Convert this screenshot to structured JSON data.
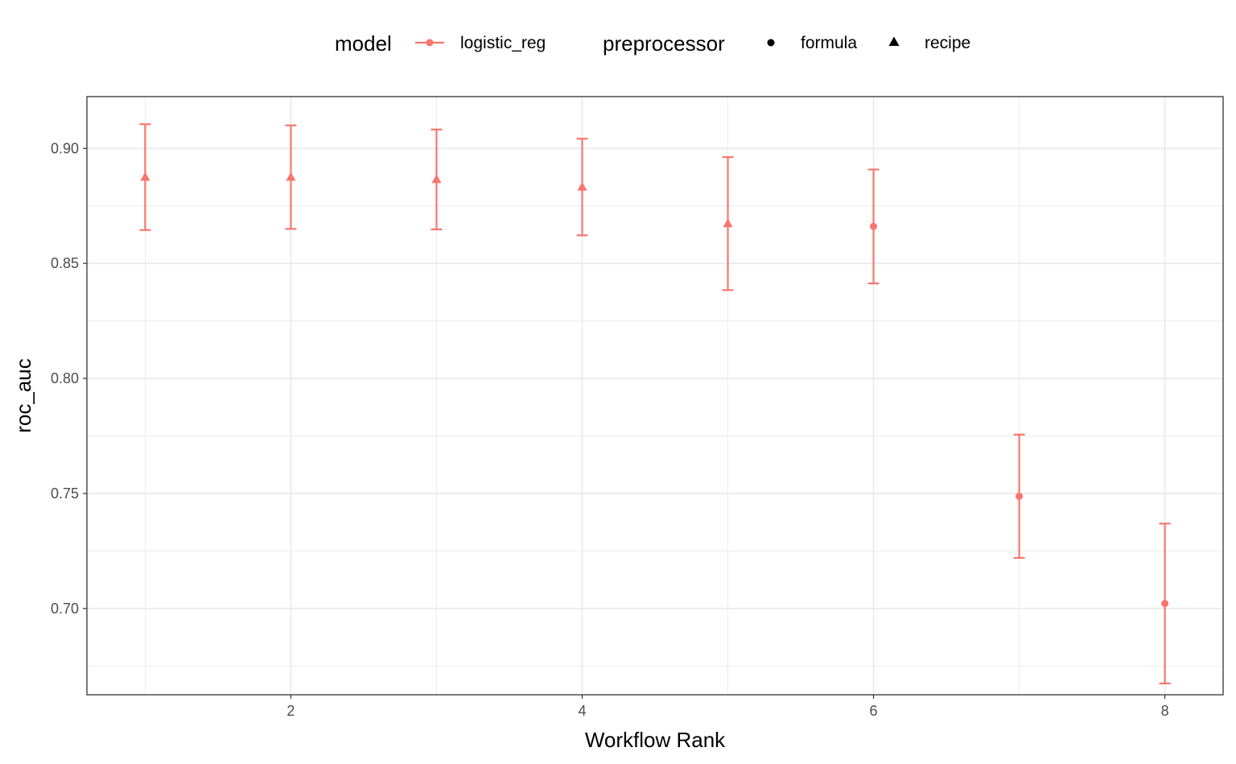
{
  "chart_data": {
    "type": "scatter",
    "xlabel": "Workflow Rank",
    "ylabel": "roc_auc",
    "xlim": [
      0.6,
      8.4
    ],
    "ylim": [
      0.6625,
      0.9225
    ],
    "x_ticks": [
      2,
      4,
      6,
      8
    ],
    "x_tick_labels": [
      "2",
      "4",
      "6",
      "8"
    ],
    "y_ticks": [
      0.7,
      0.75,
      0.8,
      0.85,
      0.9
    ],
    "y_tick_labels": [
      "0.70",
      "0.75",
      "0.80",
      "0.85",
      "0.90"
    ],
    "grid": true,
    "legend_position": "top",
    "legend": {
      "color_title": "model",
      "color_entries": [
        {
          "label": "logistic_reg",
          "color": "#F8766D"
        }
      ],
      "shape_title": "preprocessor",
      "shape_entries": [
        {
          "label": "formula",
          "shape": "circle"
        },
        {
          "label": "recipe",
          "shape": "triangle"
        }
      ]
    },
    "series": [
      {
        "model": "logistic_reg",
        "color": "#F8766D",
        "points": [
          {
            "x": 1,
            "y": 0.8875,
            "lower": 0.8645,
            "upper": 0.9105,
            "preprocessor": "recipe"
          },
          {
            "x": 2,
            "y": 0.8875,
            "lower": 0.865,
            "upper": 0.91,
            "preprocessor": "recipe"
          },
          {
            "x": 3,
            "y": 0.8865,
            "lower": 0.8648,
            "upper": 0.9082,
            "preprocessor": "recipe"
          },
          {
            "x": 4,
            "y": 0.8832,
            "lower": 0.8622,
            "upper": 0.9042,
            "preprocessor": "recipe"
          },
          {
            "x": 5,
            "y": 0.8673,
            "lower": 0.8384,
            "upper": 0.8962,
            "preprocessor": "recipe"
          },
          {
            "x": 6,
            "y": 0.8661,
            "lower": 0.8413,
            "upper": 0.8908,
            "preprocessor": "formula"
          },
          {
            "x": 7,
            "y": 0.7488,
            "lower": 0.722,
            "upper": 0.7756,
            "preprocessor": "formula"
          },
          {
            "x": 8,
            "y": 0.7022,
            "lower": 0.6674,
            "upper": 0.7369,
            "preprocessor": "formula"
          }
        ]
      }
    ]
  }
}
